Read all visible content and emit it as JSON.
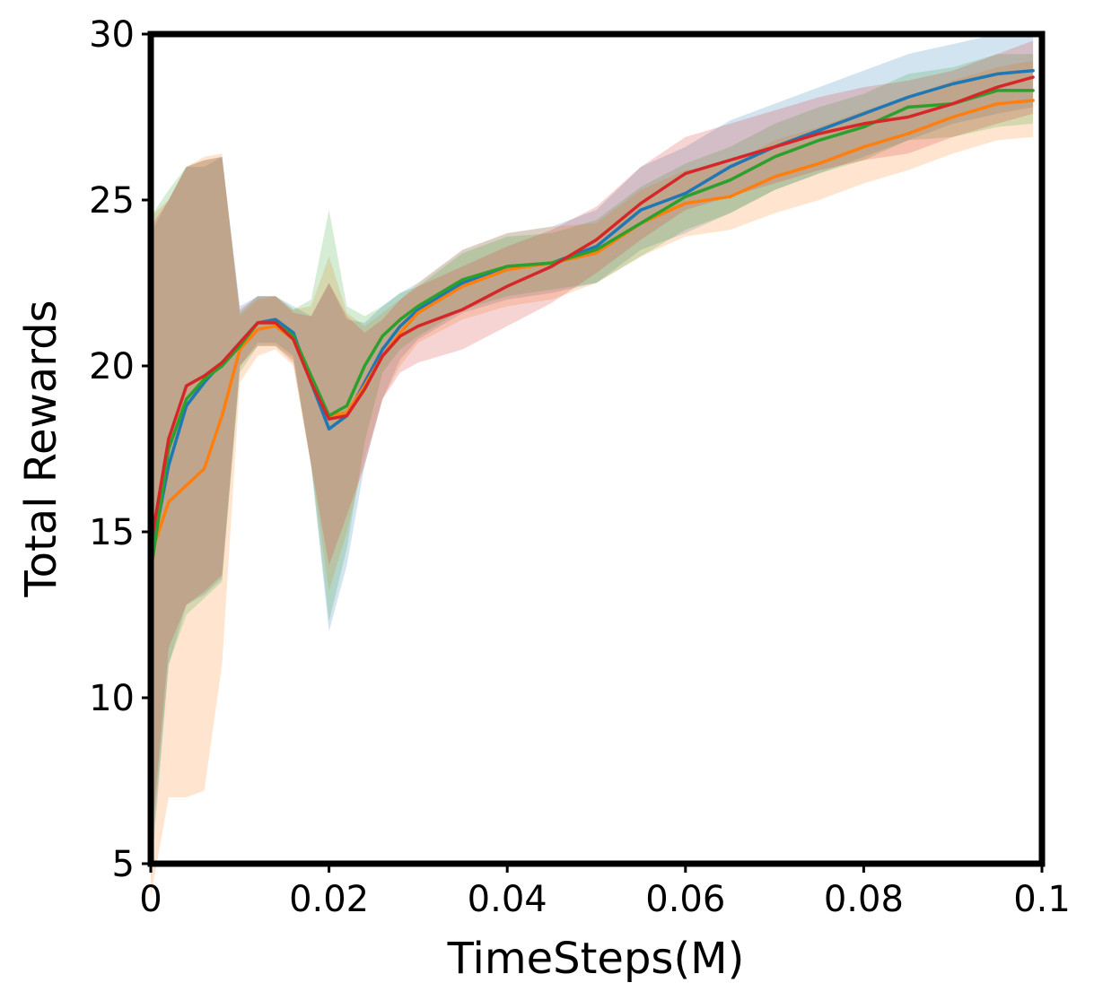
{
  "chart_data": {
    "type": "line",
    "xlabel": "TimeSteps(M)",
    "ylabel": "Total Rewards",
    "xlim": [
      0,
      0.1
    ],
    "ylim": [
      5,
      30
    ],
    "xticks": [
      0,
      0.02,
      0.04,
      0.06,
      0.08,
      0.1
    ],
    "xtick_labels": [
      "0",
      "0.02",
      "0.04",
      "0.06",
      "0.08",
      "0.1"
    ],
    "yticks": [
      5,
      10,
      15,
      20,
      25,
      30
    ],
    "ytick_labels": [
      "5",
      "10",
      "15",
      "20",
      "25",
      "30"
    ],
    "grid": false,
    "legend": "none",
    "series": [
      {
        "color": "#1f77b4",
        "x": [
          0,
          0.002,
          0.004,
          0.006,
          0.008,
          0.01,
          0.012,
          0.014,
          0.016,
          0.018,
          0.02,
          0.022,
          0.024,
          0.026,
          0.028,
          0.03,
          0.035,
          0.04,
          0.045,
          0.05,
          0.055,
          0.06,
          0.065,
          0.07,
          0.075,
          0.08,
          0.085,
          0.09,
          0.095,
          0.099
        ],
        "y": [
          14.2,
          17.0,
          18.8,
          19.5,
          20.1,
          20.7,
          21.3,
          21.4,
          21.0,
          19.5,
          18.1,
          18.5,
          19.5,
          20.5,
          21.2,
          21.7,
          22.5,
          23.0,
          23.1,
          23.6,
          24.7,
          25.2,
          26.0,
          26.6,
          27.1,
          27.6,
          28.1,
          28.5,
          28.8,
          28.9
        ],
        "upper": [
          24.0,
          25.0,
          26.0,
          26.0,
          26.3,
          21.8,
          22.1,
          22.1,
          21.8,
          21.5,
          22.5,
          21.4,
          21.3,
          21.8,
          22.2,
          22.5,
          23.5,
          24.0,
          24.2,
          24.7,
          26.0,
          26.6,
          27.4,
          27.9,
          28.4,
          28.9,
          29.4,
          29.7,
          30.0,
          30.0
        ],
        "lower": [
          4.5,
          11.0,
          12.8,
          13.1,
          13.6,
          20.0,
          20.7,
          20.7,
          20.3,
          17.0,
          12.0,
          14.0,
          17.0,
          19.0,
          20.2,
          20.8,
          21.6,
          22.0,
          22.2,
          22.5,
          23.5,
          24.0,
          24.6,
          25.3,
          25.8,
          26.3,
          26.8,
          27.3,
          27.6,
          27.8
        ]
      },
      {
        "color": "#ff7f0e",
        "x": [
          0,
          0.002,
          0.004,
          0.006,
          0.008,
          0.01,
          0.012,
          0.014,
          0.016,
          0.018,
          0.02,
          0.022,
          0.024,
          0.026,
          0.028,
          0.03,
          0.035,
          0.04,
          0.045,
          0.05,
          0.055,
          0.06,
          0.065,
          0.07,
          0.075,
          0.08,
          0.085,
          0.09,
          0.095,
          0.099
        ],
        "y": [
          14.3,
          15.9,
          16.4,
          16.9,
          18.5,
          20.5,
          21.1,
          21.2,
          20.8,
          19.6,
          18.5,
          18.6,
          19.4,
          20.3,
          21.0,
          21.6,
          22.4,
          22.9,
          23.1,
          23.4,
          24.3,
          24.9,
          25.1,
          25.7,
          26.1,
          26.6,
          27.0,
          27.5,
          27.9,
          28.0
        ],
        "upper": [
          24.5,
          25.0,
          26.0,
          26.3,
          26.4,
          21.5,
          22.0,
          22.1,
          21.7,
          21.8,
          23.3,
          21.6,
          21.2,
          21.6,
          22.0,
          22.5,
          23.5,
          24.0,
          24.2,
          24.3,
          25.3,
          25.9,
          26.1,
          26.8,
          27.2,
          27.7,
          28.1,
          28.6,
          29.0,
          29.2
        ],
        "lower": [
          4.0,
          7.0,
          7.0,
          7.2,
          11.0,
          19.5,
          20.3,
          20.5,
          20.0,
          17.0,
          13.2,
          15.0,
          17.2,
          19.0,
          20.0,
          20.7,
          21.4,
          21.8,
          22.0,
          22.5,
          23.3,
          23.9,
          24.1,
          24.6,
          25.0,
          25.5,
          25.9,
          26.4,
          26.8,
          26.9
        ]
      },
      {
        "color": "#2ca02c",
        "x": [
          0,
          0.002,
          0.004,
          0.006,
          0.008,
          0.01,
          0.012,
          0.014,
          0.016,
          0.018,
          0.02,
          0.022,
          0.024,
          0.026,
          0.028,
          0.03,
          0.035,
          0.04,
          0.045,
          0.05,
          0.055,
          0.06,
          0.065,
          0.07,
          0.075,
          0.08,
          0.085,
          0.09,
          0.095,
          0.099
        ],
        "y": [
          13.8,
          17.5,
          19.0,
          19.6,
          20.0,
          20.6,
          21.3,
          21.3,
          20.9,
          19.7,
          18.5,
          18.8,
          20.0,
          20.9,
          21.4,
          21.8,
          22.6,
          23.0,
          23.1,
          23.5,
          24.3,
          25.1,
          25.6,
          26.3,
          26.8,
          27.2,
          27.8,
          27.9,
          28.3,
          28.3
        ],
        "upper": [
          24.5,
          25.3,
          26.0,
          26.2,
          26.3,
          21.6,
          22.1,
          22.1,
          21.7,
          22.0,
          24.7,
          21.8,
          21.5,
          21.8,
          22.2,
          22.4,
          23.4,
          23.9,
          24.0,
          24.4,
          25.4,
          26.1,
          26.6,
          27.3,
          27.8,
          28.2,
          28.8,
          29.0,
          29.4,
          29.4
        ],
        "lower": [
          5.0,
          11.0,
          12.5,
          13.0,
          13.5,
          19.8,
          20.6,
          20.6,
          20.2,
          17.0,
          12.3,
          14.5,
          17.7,
          19.8,
          20.5,
          20.9,
          21.7,
          22.1,
          22.3,
          22.5,
          23.3,
          24.1,
          24.6,
          25.3,
          25.8,
          26.2,
          26.8,
          26.9,
          27.2,
          27.3
        ]
      },
      {
        "color": "#d62728",
        "x": [
          0,
          0.002,
          0.004,
          0.006,
          0.008,
          0.01,
          0.012,
          0.014,
          0.016,
          0.018,
          0.02,
          0.022,
          0.024,
          0.026,
          0.028,
          0.03,
          0.035,
          0.04,
          0.045,
          0.05,
          0.055,
          0.06,
          0.065,
          0.07,
          0.075,
          0.08,
          0.085,
          0.09,
          0.095,
          0.099
        ],
        "y": [
          14.6,
          17.8,
          19.4,
          19.7,
          20.1,
          20.7,
          21.3,
          21.3,
          20.8,
          19.5,
          18.4,
          18.5,
          19.3,
          20.3,
          20.9,
          21.2,
          21.7,
          22.4,
          23.0,
          23.8,
          24.9,
          25.8,
          26.2,
          26.6,
          27.0,
          27.3,
          27.5,
          27.9,
          28.4,
          28.7
        ],
        "upper": [
          24.2,
          25.0,
          26.0,
          26.2,
          26.3,
          21.7,
          22.1,
          22.1,
          21.6,
          21.5,
          22.5,
          21.5,
          21.0,
          21.4,
          22.0,
          22.4,
          23.0,
          23.6,
          24.1,
          24.8,
          26.0,
          26.9,
          27.3,
          27.7,
          28.1,
          28.4,
          28.6,
          28.9,
          29.4,
          29.8
        ],
        "lower": [
          5.5,
          11.5,
          12.8,
          13.2,
          13.7,
          20.0,
          20.6,
          20.6,
          20.1,
          17.0,
          14.0,
          15.5,
          17.0,
          19.0,
          19.8,
          20.1,
          20.5,
          21.2,
          21.9,
          22.8,
          23.8,
          24.7,
          25.1,
          25.5,
          25.9,
          26.2,
          26.4,
          26.9,
          27.3,
          27.6
        ]
      }
    ]
  }
}
